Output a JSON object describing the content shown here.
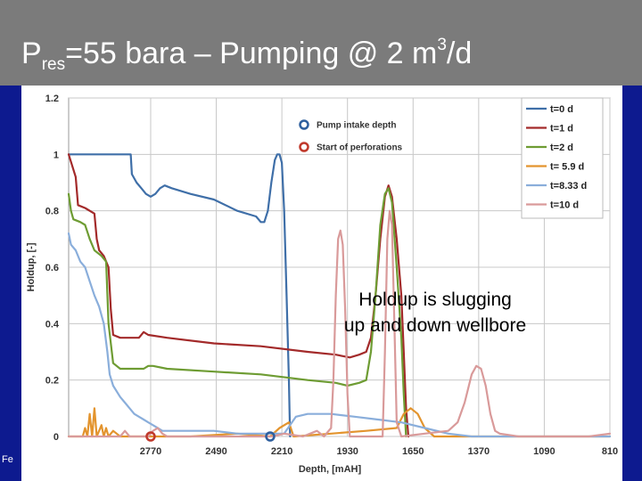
{
  "slide": {
    "title_base": "P",
    "title_sub": "res",
    "title_rest": "=55 bara – Pumping @ 2 m",
    "title_sup": "3",
    "title_end": "/d",
    "footer_fragment": "Fe",
    "annotation_line1": "Holdup is slugging",
    "annotation_line2": "up and down wellbore",
    "colors": {
      "title_bar": "#7b7b7b",
      "side_band": "#0d1a8f"
    }
  },
  "chart_data": {
    "type": "line",
    "xlabel": "Depth, [mAH]",
    "ylabel": "Holdup, [-]",
    "x_reversed": true,
    "xlim": [
      3120,
      810
    ],
    "ylim": [
      0,
      1.2
    ],
    "xticks": [
      2770,
      2490,
      2210,
      1930,
      1650,
      1370,
      1090,
      810
    ],
    "yticks": [
      0,
      0.2,
      0.4,
      0.6,
      0.8,
      1,
      1.2
    ],
    "ytick_labels": [
      "0",
      "0.2",
      "0.4",
      "0.6",
      "0.8",
      "1",
      "1.2"
    ],
    "grid": true,
    "legend_position": "top-right",
    "marker_legend": [
      {
        "name": "Pump intake depth",
        "color": "#2e5f9e"
      },
      {
        "name": "Start of perforations",
        "color": "#c0392b"
      }
    ],
    "markers": [
      {
        "series": "Pump intake depth",
        "x": 2260,
        "y": 0
      },
      {
        "series": "Start of perforations",
        "x": 2770,
        "y": 0
      }
    ],
    "series": [
      {
        "name": "t=0 d",
        "color": "#3f6fa8",
        "points": [
          [
            3120,
            1
          ],
          [
            2960,
            1
          ],
          [
            2855,
            1
          ],
          [
            2850,
            0.93
          ],
          [
            2830,
            0.9
          ],
          [
            2810,
            0.88
          ],
          [
            2790,
            0.86
          ],
          [
            2770,
            0.85
          ],
          [
            2750,
            0.86
          ],
          [
            2730,
            0.88
          ],
          [
            2710,
            0.89
          ],
          [
            2680,
            0.88
          ],
          [
            2600,
            0.86
          ],
          [
            2500,
            0.84
          ],
          [
            2400,
            0.8
          ],
          [
            2320,
            0.78
          ],
          [
            2300,
            0.76
          ],
          [
            2285,
            0.76
          ],
          [
            2270,
            0.8
          ],
          [
            2255,
            0.9
          ],
          [
            2240,
            0.98
          ],
          [
            2230,
            1
          ],
          [
            2220,
            1
          ],
          [
            2210,
            0.97
          ],
          [
            2200,
            0.8
          ],
          [
            2190,
            0.5
          ],
          [
            2180,
            0.2
          ],
          [
            2175,
            0
          ]
        ]
      },
      {
        "name": "t=1 d",
        "color": "#a32a2a",
        "points": [
          [
            3120,
            1
          ],
          [
            3090,
            0.92
          ],
          [
            3080,
            0.82
          ],
          [
            3050,
            0.81
          ],
          [
            3010,
            0.79
          ],
          [
            3000,
            0.7
          ],
          [
            2990,
            0.66
          ],
          [
            2970,
            0.64
          ],
          [
            2950,
            0.6
          ],
          [
            2940,
            0.45
          ],
          [
            2930,
            0.36
          ],
          [
            2900,
            0.35
          ],
          [
            2850,
            0.35
          ],
          [
            2820,
            0.35
          ],
          [
            2800,
            0.37
          ],
          [
            2780,
            0.36
          ],
          [
            2700,
            0.35
          ],
          [
            2500,
            0.33
          ],
          [
            2300,
            0.32
          ],
          [
            2100,
            0.3
          ],
          [
            1980,
            0.29
          ],
          [
            1920,
            0.28
          ],
          [
            1880,
            0.29
          ],
          [
            1850,
            0.3
          ],
          [
            1830,
            0.35
          ],
          [
            1810,
            0.5
          ],
          [
            1790,
            0.7
          ],
          [
            1770,
            0.85
          ],
          [
            1755,
            0.89
          ],
          [
            1740,
            0.85
          ],
          [
            1720,
            0.7
          ],
          [
            1700,
            0.5
          ],
          [
            1690,
            0.3
          ],
          [
            1680,
            0.1
          ],
          [
            1670,
            0
          ]
        ]
      },
      {
        "name": "t=2 d",
        "color": "#6e9c33",
        "points": [
          [
            3120,
            0.86
          ],
          [
            3110,
            0.8
          ],
          [
            3100,
            0.77
          ],
          [
            3070,
            0.76
          ],
          [
            3050,
            0.75
          ],
          [
            3030,
            0.7
          ],
          [
            3010,
            0.66
          ],
          [
            2980,
            0.64
          ],
          [
            2960,
            0.62
          ],
          [
            2950,
            0.4
          ],
          [
            2930,
            0.26
          ],
          [
            2900,
            0.24
          ],
          [
            2850,
            0.24
          ],
          [
            2800,
            0.24
          ],
          [
            2780,
            0.25
          ],
          [
            2760,
            0.25
          ],
          [
            2700,
            0.24
          ],
          [
            2500,
            0.23
          ],
          [
            2300,
            0.22
          ],
          [
            2100,
            0.2
          ],
          [
            1980,
            0.19
          ],
          [
            1930,
            0.18
          ],
          [
            1880,
            0.19
          ],
          [
            1850,
            0.2
          ],
          [
            1830,
            0.3
          ],
          [
            1810,
            0.5
          ],
          [
            1790,
            0.75
          ],
          [
            1770,
            0.86
          ],
          [
            1755,
            0.88
          ],
          [
            1740,
            0.83
          ],
          [
            1720,
            0.6
          ],
          [
            1700,
            0.35
          ],
          [
            1690,
            0.15
          ],
          [
            1680,
            0
          ]
        ]
      },
      {
        "name": "t= 5.9 d",
        "color": "#e3942e",
        "points": [
          [
            3120,
            0
          ],
          [
            3060,
            0
          ],
          [
            3050,
            0.03
          ],
          [
            3040,
            0
          ],
          [
            3030,
            0.08
          ],
          [
            3020,
            0
          ],
          [
            3010,
            0.1
          ],
          [
            3000,
            0
          ],
          [
            2980,
            0.04
          ],
          [
            2970,
            0
          ],
          [
            2960,
            0.03
          ],
          [
            2950,
            0
          ],
          [
            2930,
            0.02
          ],
          [
            2900,
            0
          ],
          [
            2600,
            0
          ],
          [
            2400,
            0.01
          ],
          [
            2260,
            0
          ],
          [
            2220,
            0.03
          ],
          [
            2180,
            0.05
          ],
          [
            2160,
            0
          ],
          [
            2000,
            0.01
          ],
          [
            1850,
            0.02
          ],
          [
            1720,
            0.03
          ],
          [
            1690,
            0.08
          ],
          [
            1660,
            0.1
          ],
          [
            1630,
            0.08
          ],
          [
            1600,
            0.03
          ],
          [
            1560,
            0
          ],
          [
            810,
            0
          ]
        ]
      },
      {
        "name": "t=8.33 d",
        "color": "#8aaedb",
        "points": [
          [
            3120,
            0.72
          ],
          [
            3110,
            0.68
          ],
          [
            3090,
            0.66
          ],
          [
            3070,
            0.62
          ],
          [
            3050,
            0.6
          ],
          [
            3030,
            0.55
          ],
          [
            3010,
            0.5
          ],
          [
            2990,
            0.46
          ],
          [
            2970,
            0.4
          ],
          [
            2955,
            0.3
          ],
          [
            2945,
            0.22
          ],
          [
            2930,
            0.18
          ],
          [
            2900,
            0.14
          ],
          [
            2880,
            0.12
          ],
          [
            2860,
            0.1
          ],
          [
            2840,
            0.08
          ],
          [
            2820,
            0.07
          ],
          [
            2800,
            0.06
          ],
          [
            2780,
            0.05
          ],
          [
            2760,
            0.04
          ],
          [
            2740,
            0.03
          ],
          [
            2720,
            0.02
          ],
          [
            2700,
            0.02
          ],
          [
            2600,
            0.02
          ],
          [
            2500,
            0.02
          ],
          [
            2400,
            0.01
          ],
          [
            2300,
            0.01
          ],
          [
            2200,
            0.01
          ],
          [
            2150,
            0.07
          ],
          [
            2100,
            0.08
          ],
          [
            2000,
            0.08
          ],
          [
            1900,
            0.07
          ],
          [
            1800,
            0.06
          ],
          [
            1700,
            0.05
          ],
          [
            1600,
            0.03
          ],
          [
            1500,
            0.01
          ],
          [
            1400,
            0
          ],
          [
            810,
            0
          ]
        ]
      },
      {
        "name": "t=10 d",
        "color": "#d99a9a",
        "points": [
          [
            3120,
            0
          ],
          [
            2900,
            0
          ],
          [
            2880,
            0.02
          ],
          [
            2860,
            0
          ],
          [
            2780,
            0
          ],
          [
            2760,
            0.02
          ],
          [
            2740,
            0.03
          ],
          [
            2720,
            0.01
          ],
          [
            2700,
            0
          ],
          [
            2600,
            0
          ],
          [
            2250,
            0
          ],
          [
            2200,
            0.01
          ],
          [
            2120,
            0
          ],
          [
            2060,
            0.02
          ],
          [
            2030,
            0
          ],
          [
            2000,
            0.03
          ],
          [
            1990,
            0.2
          ],
          [
            1980,
            0.5
          ],
          [
            1970,
            0.7
          ],
          [
            1960,
            0.73
          ],
          [
            1950,
            0.68
          ],
          [
            1940,
            0.45
          ],
          [
            1930,
            0.15
          ],
          [
            1920,
            0
          ],
          [
            1780,
            0
          ],
          [
            1770,
            0.3
          ],
          [
            1760,
            0.7
          ],
          [
            1750,
            0.8
          ],
          [
            1740,
            0.75
          ],
          [
            1730,
            0.4
          ],
          [
            1720,
            0.05
          ],
          [
            1700,
            0
          ],
          [
            1600,
            0.01
          ],
          [
            1500,
            0.02
          ],
          [
            1460,
            0.05
          ],
          [
            1430,
            0.12
          ],
          [
            1400,
            0.22
          ],
          [
            1380,
            0.25
          ],
          [
            1360,
            0.24
          ],
          [
            1340,
            0.18
          ],
          [
            1320,
            0.08
          ],
          [
            1300,
            0.02
          ],
          [
            1280,
            0.01
          ],
          [
            1200,
            0
          ],
          [
            1000,
            0
          ],
          [
            900,
            0
          ],
          [
            810,
            0.01
          ]
        ]
      }
    ]
  }
}
